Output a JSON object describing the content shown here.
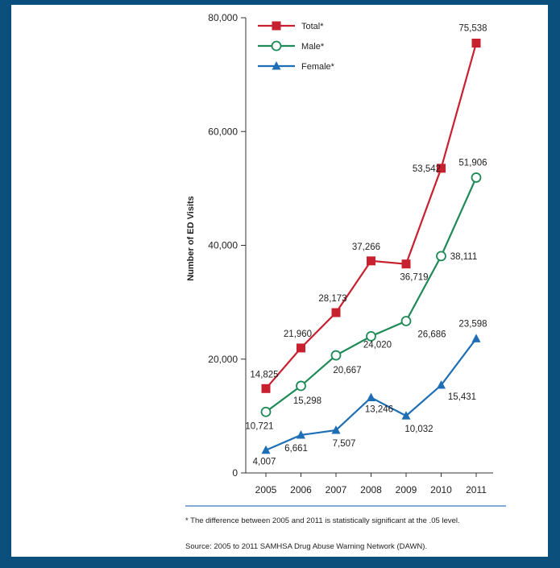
{
  "chart_data": {
    "type": "line",
    "title": "",
    "xlabel": "",
    "ylabel": "Number of ED Visits",
    "x": [
      "2005",
      "2006",
      "2007",
      "2008",
      "2009",
      "2010",
      "2011"
    ],
    "ylim": [
      0,
      80000
    ],
    "yticks": [
      "0",
      "20,000",
      "40,000",
      "60,000",
      "80,000"
    ],
    "ytick_values": [
      0,
      20000,
      40000,
      60000,
      80000
    ],
    "legend_position": "top-left",
    "grid": false,
    "series": [
      {
        "name": "Total*",
        "color": "#c8202f",
        "marker": "square",
        "values": [
          14825,
          21960,
          28173,
          37266,
          36719,
          53542,
          75538
        ],
        "labels": [
          "14,825",
          "21,960",
          "28,173",
          "37,266",
          "36,719",
          "53,542",
          "75,538"
        ]
      },
      {
        "name": "Male*",
        "color": "#1f8a57",
        "marker": "circle-open",
        "values": [
          10721,
          15298,
          20667,
          24020,
          26686,
          38111,
          51906
        ],
        "labels": [
          "10,721",
          "15,298",
          "20,667",
          "24,020",
          "26,686",
          "38,111",
          "51,906"
        ]
      },
      {
        "name": "Female*",
        "color": "#1e6eb5",
        "marker": "triangle",
        "values": [
          4007,
          6661,
          7507,
          13246,
          10032,
          15431,
          23598
        ],
        "labels": [
          "4,007",
          "6,661",
          "7,507",
          "13,246",
          "10,032",
          "15,431",
          "23,598"
        ]
      }
    ]
  },
  "footnote": "* The difference between 2005 and 2011 is statistically significant at the .05 level.",
  "source": "Source: 2005 to 2011 SAMHSA Drug Abuse Warning Network (DAWN)."
}
